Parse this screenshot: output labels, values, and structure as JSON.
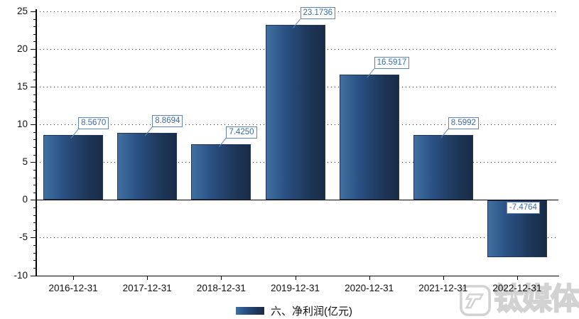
{
  "chart_data": {
    "type": "bar",
    "title": "",
    "categories": [
      "2016-12-31",
      "2017-12-31",
      "2018-12-31",
      "2019-12-31",
      "2020-12-31",
      "2021-12-31",
      "2022-12-31"
    ],
    "values": [
      8.567,
      8.8694,
      7.425,
      23.1736,
      16.5917,
      8.5992,
      -7.4764
    ],
    "value_labels": [
      "8.5670",
      "8.8694",
      "7.4250",
      "23.1736",
      "16.5917",
      "8.5992",
      "-7.4764"
    ],
    "legend": {
      "label": "六、净利润(亿元)",
      "position": "bottom-center"
    },
    "xlabel": "",
    "ylabel": "",
    "ylim": [
      -10,
      25
    ],
    "yticks": [
      -10,
      -5,
      0,
      5,
      10,
      15,
      20,
      25
    ],
    "grid": "dotted-horizontal",
    "gridline_values": [
      25,
      20,
      15,
      10,
      5,
      -5
    ],
    "colors": {
      "bar_gradient_left": "#41709f",
      "bar_gradient_right": "#182c49",
      "bar_border": "#20365a",
      "value_label_text": "#3a6ba5",
      "value_label_border": "#5e86b5",
      "axis": "#000000",
      "tick_label": "#111111"
    }
  },
  "watermark": {
    "text": "钛媒体",
    "logo": "tmtpost-logo"
  }
}
